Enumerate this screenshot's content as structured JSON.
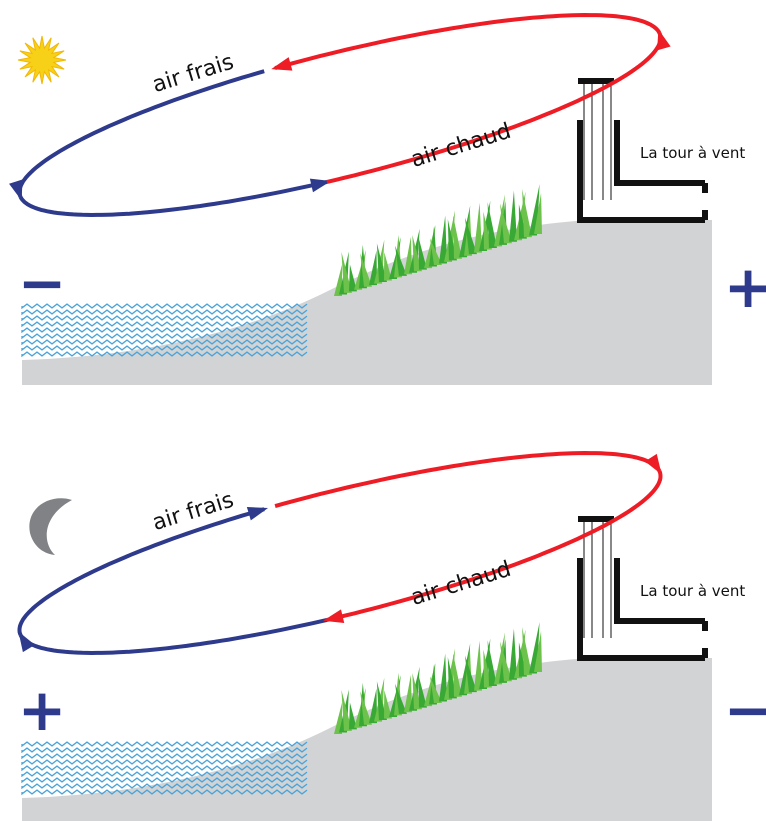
{
  "panels": [
    {
      "cool_air": "air frais",
      "warm_air": "air chaud",
      "tower": "La tour à vent",
      "left_sign": "−",
      "right_sign": "+"
    },
    {
      "cool_air": "air frais",
      "warm_air": "air chaud",
      "tower": "La tour à vent",
      "left_sign": "+",
      "right_sign": "−"
    }
  ]
}
